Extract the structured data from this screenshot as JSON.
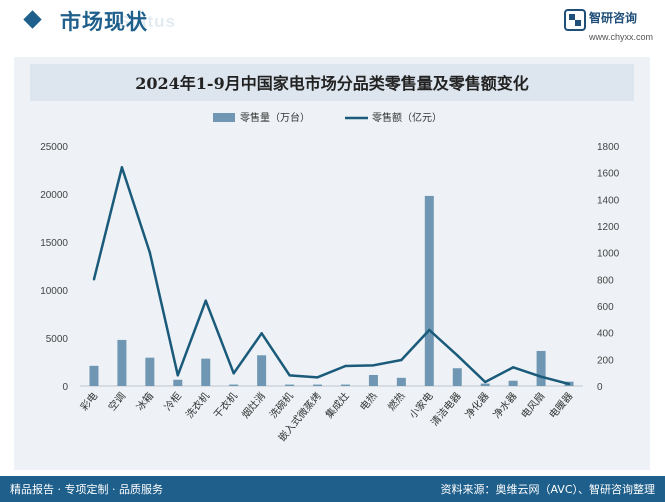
{
  "header": {
    "section_title": "市场现状",
    "section_title_en": "Status",
    "logo_name": "智研咨询",
    "logo_url": "www.chyxx.com"
  },
  "colors": {
    "brand": "#1f5f8b",
    "bar": "#6f97b3",
    "line": "#1a5a7a",
    "panel": "#eef2f6"
  },
  "chart_data": {
    "type": "bar",
    "title": "2024年1-9月中国家电市场分品类零售量及零售额变化",
    "categories": [
      "彩电",
      "空调",
      "冰箱",
      "冷柜",
      "洗衣机",
      "干衣机",
      "烟灶消",
      "洗碗机",
      "嵌入式微蒸烤",
      "集成灶",
      "电热",
      "燃热",
      "小家电",
      "清洁电器",
      "净化器",
      "净水器",
      "电风扇",
      "电暖器"
    ],
    "series": [
      {
        "name": "零售量（万台）",
        "type": "bar",
        "axis": "left",
        "values": [
          2100,
          4800,
          2950,
          650,
          2850,
          150,
          3200,
          150,
          150,
          150,
          1150,
          850,
          19800,
          1850,
          250,
          550,
          3650,
          450
        ]
      },
      {
        "name": "零售额（亿元）",
        "type": "line",
        "axis": "right",
        "values": [
          800,
          1640,
          1000,
          80,
          640,
          95,
          395,
          80,
          65,
          150,
          155,
          195,
          420,
          230,
          30,
          140,
          70,
          15
        ]
      }
    ],
    "left_axis": {
      "min": 0,
      "max": 25000,
      "ticks": [
        0,
        5000,
        10000,
        15000,
        20000,
        25000
      ]
    },
    "right_axis": {
      "min": 0,
      "max": 1800,
      "ticks": [
        0,
        200,
        400,
        600,
        800,
        1000,
        1200,
        1400,
        1600,
        1800
      ]
    },
    "legend_position": "top-center",
    "grid": false
  },
  "footer": {
    "left": "精品报告 · 专项定制 · 品质服务",
    "right": "资料来源：奥维云网（AVC）、智研咨询整理"
  }
}
